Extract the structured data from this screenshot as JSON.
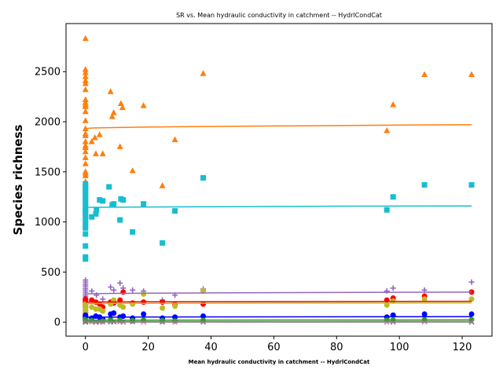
{
  "chart_data": {
    "type": "scatter",
    "title": "SR vs. Mean hydraulic conductivity in catchment -- HydrlCondCat",
    "xlabel": "Mean hydraulic conductivity in catchment -- HydrlCondCat",
    "ylabel": "Species richness",
    "xlim": [
      -6.2,
      129.5
    ],
    "ylim": [
      -140,
      2980
    ],
    "x_ticks": [
      0,
      20,
      40,
      60,
      80,
      100,
      120
    ],
    "y_ticks": [
      0,
      500,
      1000,
      1500,
      2000,
      2500
    ],
    "grid": false,
    "series": [
      {
        "marker": "triangle",
        "color": "#ff7f0e",
        "points": [
          [
            0,
            2830
          ],
          [
            0,
            2520
          ],
          [
            0,
            2490
          ],
          [
            0,
            2450
          ],
          [
            0,
            2410
          ],
          [
            0,
            2380
          ],
          [
            0,
            2320
          ],
          [
            0,
            2220
          ],
          [
            0,
            2190
          ],
          [
            0,
            2170
          ],
          [
            0,
            2150
          ],
          [
            0,
            2100
          ],
          [
            0,
            2010
          ],
          [
            0,
            1930
          ],
          [
            0,
            1880
          ],
          [
            0,
            1860
          ],
          [
            0,
            1800
          ],
          [
            0,
            1760
          ],
          [
            0,
            1740
          ],
          [
            0,
            1700
          ],
          [
            0,
            1640
          ],
          [
            0,
            1580
          ],
          [
            0,
            1500
          ],
          [
            0,
            1480
          ],
          [
            0,
            1460
          ],
          [
            0,
            1400
          ],
          [
            0,
            1360
          ],
          [
            0,
            1290
          ],
          [
            0,
            1200
          ],
          [
            0,
            1150
          ],
          [
            0,
            1080
          ],
          [
            0,
            1000
          ],
          [
            0,
            960
          ],
          [
            2,
            1800
          ],
          [
            3,
            1840
          ],
          [
            3.3,
            1680
          ],
          [
            4.5,
            1870
          ],
          [
            5.5,
            1680
          ],
          [
            8,
            2300
          ],
          [
            8.5,
            2050
          ],
          [
            9,
            2090
          ],
          [
            11,
            1750
          ],
          [
            11.3,
            2180
          ],
          [
            11.8,
            2140
          ],
          [
            15,
            1510
          ],
          [
            18.5,
            2160
          ],
          [
            24.5,
            1360
          ],
          [
            28.5,
            1820
          ],
          [
            37.5,
            2480
          ],
          [
            96,
            1910
          ],
          [
            98,
            2170
          ],
          [
            108,
            2470
          ],
          [
            123,
            2470
          ]
        ],
        "fit": [
          [
            0,
            1920
          ],
          [
            0.5,
            1932
          ],
          [
            1,
            1935
          ],
          [
            3,
            1938
          ],
          [
            10,
            1942
          ],
          [
            20,
            1947
          ],
          [
            40,
            1953
          ],
          [
            60,
            1958
          ],
          [
            80,
            1962
          ],
          [
            100,
            1966
          ],
          [
            123,
            1970
          ]
        ]
      },
      {
        "marker": "square",
        "color": "#17becf",
        "points": [
          [
            0,
            1380
          ],
          [
            0,
            1350
          ],
          [
            0,
            1330
          ],
          [
            0,
            1300
          ],
          [
            0,
            1280
          ],
          [
            0,
            1250
          ],
          [
            0,
            1220
          ],
          [
            0,
            1190
          ],
          [
            0,
            1160
          ],
          [
            0,
            1130
          ],
          [
            0,
            1110
          ],
          [
            0,
            1090
          ],
          [
            0,
            1060
          ],
          [
            0,
            1020
          ],
          [
            0,
            980
          ],
          [
            0,
            940
          ],
          [
            0,
            880
          ],
          [
            0,
            760
          ],
          [
            0,
            650
          ],
          [
            0,
            630
          ],
          [
            2,
            1050
          ],
          [
            3.3,
            1080
          ],
          [
            3.5,
            1120
          ],
          [
            4.5,
            1220
          ],
          [
            5.5,
            1210
          ],
          [
            7.5,
            1350
          ],
          [
            8.5,
            1170
          ],
          [
            9,
            1180
          ],
          [
            11,
            1020
          ],
          [
            11.3,
            1230
          ],
          [
            12,
            1220
          ],
          [
            15,
            900
          ],
          [
            18.5,
            1180
          ],
          [
            24.5,
            790
          ],
          [
            28.5,
            1110
          ],
          [
            37.5,
            1440
          ],
          [
            96,
            1120
          ],
          [
            98,
            1250
          ],
          [
            108,
            1370
          ],
          [
            123,
            1370
          ]
        ],
        "fit": [
          [
            0,
            1145
          ],
          [
            1,
            1146
          ],
          [
            10,
            1148
          ],
          [
            40,
            1152
          ],
          [
            80,
            1157
          ],
          [
            123,
            1160
          ]
        ]
      },
      {
        "marker": "plus",
        "color": "#9467bd",
        "points": [
          [
            0,
            420
          ],
          [
            0,
            400
          ],
          [
            0,
            380
          ],
          [
            0,
            360
          ],
          [
            0,
            340
          ],
          [
            0,
            320
          ],
          [
            0,
            300
          ],
          [
            0,
            280
          ],
          [
            0,
            260
          ],
          [
            0,
            240
          ],
          [
            0,
            220
          ],
          [
            0,
            200
          ],
          [
            0,
            180
          ],
          [
            0,
            160
          ],
          [
            0,
            120
          ],
          [
            2,
            310
          ],
          [
            3.5,
            270
          ],
          [
            5.5,
            230
          ],
          [
            8,
            350
          ],
          [
            9,
            320
          ],
          [
            11,
            390
          ],
          [
            12,
            340
          ],
          [
            15,
            320
          ],
          [
            18.5,
            310
          ],
          [
            24.5,
            220
          ],
          [
            28.5,
            270
          ],
          [
            37.5,
            330
          ],
          [
            96,
            310
          ],
          [
            98,
            340
          ],
          [
            108,
            320
          ],
          [
            123,
            400
          ]
        ],
        "fit": [
          [
            0,
            280
          ],
          [
            1,
            283
          ],
          [
            10,
            287
          ],
          [
            40,
            292
          ],
          [
            80,
            296
          ],
          [
            123,
            300
          ]
        ]
      },
      {
        "marker": "circle",
        "color": "#ff0000",
        "points": [
          [
            0,
            230
          ],
          [
            0,
            210
          ],
          [
            0,
            190
          ],
          [
            0,
            170
          ],
          [
            0,
            150
          ],
          [
            0,
            120
          ],
          [
            0,
            90
          ],
          [
            0,
            60
          ],
          [
            2,
            220
          ],
          [
            3.3,
            200
          ],
          [
            4.5,
            180
          ],
          [
            5.5,
            150
          ],
          [
            8,
            200
          ],
          [
            9,
            190
          ],
          [
            11,
            220
          ],
          [
            12,
            300
          ],
          [
            15,
            190
          ],
          [
            18.5,
            200
          ],
          [
            24.5,
            200
          ],
          [
            28.5,
            180
          ],
          [
            37.5,
            180
          ],
          [
            96,
            220
          ],
          [
            98,
            240
          ],
          [
            108,
            260
          ],
          [
            123,
            300
          ]
        ],
        "fit": [
          [
            0,
            200
          ],
          [
            20,
            203
          ],
          [
            60,
            205
          ],
          [
            123,
            208
          ]
        ]
      },
      {
        "marker": "circle",
        "color": "#bcbd22",
        "points": [
          [
            0,
            180
          ],
          [
            0,
            160
          ],
          [
            0,
            140
          ],
          [
            0,
            120
          ],
          [
            0,
            100
          ],
          [
            0,
            80
          ],
          [
            2,
            150
          ],
          [
            3.3,
            130
          ],
          [
            4.5,
            130
          ],
          [
            5.5,
            110
          ],
          [
            8,
            180
          ],
          [
            9,
            220
          ],
          [
            11,
            170
          ],
          [
            12,
            150
          ],
          [
            15,
            180
          ],
          [
            18.5,
            280
          ],
          [
            24.5,
            140
          ],
          [
            28.5,
            160
          ],
          [
            37.5,
            310
          ],
          [
            96,
            170
          ],
          [
            98,
            210
          ],
          [
            108,
            230
          ],
          [
            123,
            230
          ]
        ],
        "fit": [
          [
            0,
            185
          ],
          [
            20,
            188
          ],
          [
            60,
            190
          ],
          [
            123,
            192
          ]
        ]
      },
      {
        "marker": "circle",
        "color": "#0000ff",
        "points": [
          [
            0,
            70
          ],
          [
            0,
            55
          ],
          [
            0,
            45
          ],
          [
            0,
            35
          ],
          [
            0,
            25
          ],
          [
            2,
            40
          ],
          [
            3.3,
            60
          ],
          [
            4.5,
            50
          ],
          [
            5.5,
            30
          ],
          [
            8,
            80
          ],
          [
            9,
            90
          ],
          [
            11,
            50
          ],
          [
            12,
            60
          ],
          [
            15,
            40
          ],
          [
            18.5,
            80
          ],
          [
            24.5,
            40
          ],
          [
            28.5,
            50
          ],
          [
            37.5,
            60
          ],
          [
            96,
            50
          ],
          [
            98,
            70
          ],
          [
            108,
            80
          ],
          [
            123,
            80
          ]
        ],
        "fit": [
          [
            0,
            50
          ],
          [
            40,
            52
          ],
          [
            123,
            55
          ]
        ]
      },
      {
        "marker": "circle",
        "color": "#2ca02c",
        "points": [
          [
            0,
            30
          ],
          [
            0,
            20
          ],
          [
            0,
            12
          ],
          [
            2,
            15
          ],
          [
            5.5,
            10
          ],
          [
            8,
            25
          ],
          [
            11,
            18
          ],
          [
            15,
            15
          ],
          [
            18.5,
            20
          ],
          [
            24.5,
            15
          ],
          [
            28.5,
            12
          ],
          [
            37.5,
            18
          ],
          [
            96,
            20
          ],
          [
            98,
            22
          ],
          [
            108,
            25
          ],
          [
            123,
            25
          ]
        ],
        "fit": [
          [
            0,
            20
          ],
          [
            123,
            22
          ]
        ]
      },
      {
        "marker": "x",
        "color": "#8c564b",
        "points": [
          [
            0,
            10
          ],
          [
            0,
            5
          ],
          [
            0,
            0
          ],
          [
            2,
            5
          ],
          [
            3.3,
            0
          ],
          [
            4.5,
            3
          ],
          [
            5.5,
            2
          ],
          [
            8,
            8
          ],
          [
            9,
            4
          ],
          [
            11,
            6
          ],
          [
            15,
            5
          ],
          [
            18.5,
            3
          ],
          [
            24.5,
            4
          ],
          [
            28.5,
            3
          ],
          [
            37.5,
            5
          ],
          [
            96,
            2
          ],
          [
            98,
            4
          ],
          [
            108,
            6
          ],
          [
            123,
            6
          ]
        ],
        "fit": [
          [
            0,
            5
          ],
          [
            123,
            6
          ]
        ]
      },
      {
        "marker": "x",
        "color": "#e377c2",
        "points": [
          [
            0,
            8
          ],
          [
            0,
            3
          ],
          [
            2,
            2
          ],
          [
            5.5,
            1
          ],
          [
            8,
            4
          ],
          [
            11,
            3
          ],
          [
            18.5,
            2
          ],
          [
            28.5,
            2
          ],
          [
            96,
            1
          ],
          [
            108,
            3
          ],
          [
            123,
            3
          ]
        ],
        "fit": [
          [
            0,
            2
          ],
          [
            123,
            3
          ]
        ]
      },
      {
        "marker": "x",
        "color": "#7f7f7f",
        "points": [
          [
            0,
            6
          ],
          [
            0,
            1
          ],
          [
            3.3,
            1
          ],
          [
            8,
            2
          ],
          [
            12,
            2
          ],
          [
            24.5,
            1
          ],
          [
            37.5,
            2
          ],
          [
            98,
            1
          ],
          [
            123,
            1
          ]
        ],
        "fit": [
          [
            0,
            1
          ],
          [
            123,
            1
          ]
        ]
      }
    ]
  }
}
